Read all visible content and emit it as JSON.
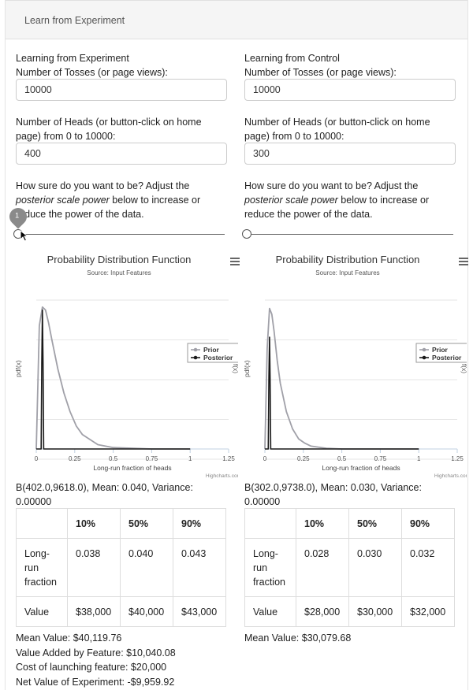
{
  "panel": {
    "title": "Learn from Experiment"
  },
  "experiment": {
    "heading": "Learning from Experiment",
    "tosses_label": "Number of Tosses (or page views):",
    "tosses_value": "10000",
    "heads_label_1": "Number of Heads (or button-click on home",
    "heads_label_2": "page) from 0 to 10000:",
    "heads_value": "400",
    "sure_1": "How sure do you want to be? Adjust the",
    "sure_2_em": "posterior scale power",
    "sure_2_rest": " below to increase or",
    "sure_3": "reduce the power of the data.",
    "slider_tooltip": "1",
    "slider_value": 0,
    "chart": {
      "title": "Probability Distribution Function",
      "subtitle": "Source: Input Features",
      "ylabel": "pdf(x)",
      "ylabel_right": "f(x)",
      "xlabel": "Long-run fraction of heads",
      "xticks": [
        "0",
        "0.25",
        "0.5",
        "0.75",
        "1",
        "1.25"
      ],
      "legend": [
        "Prior",
        "Posterior"
      ],
      "credit": "Highcharts.com"
    },
    "dist": "B(402.0,9618.0), Mean: 0.040, Variance:",
    "dist2": "0.00000",
    "table": {
      "headers": [
        "",
        "10%",
        "50%",
        "90%"
      ],
      "row1_label": [
        "Long-",
        "run",
        "fraction"
      ],
      "row1": [
        "0.038",
        "0.040",
        "0.043"
      ],
      "row2_label": "Value",
      "row2": [
        "$38,000",
        "$40,000",
        "$43,000"
      ]
    },
    "summary": [
      "Mean Value: $40,119.76",
      "Value Added by Feature: $10,040.08",
      "Cost of launching feature: $20,000",
      "Net Value of Experiment: -$9,959.92"
    ]
  },
  "control": {
    "heading": "Learning from Control",
    "tosses_label": "Number of Tosses (or page views):",
    "tosses_value": "10000",
    "heads_label_1": "Number of Heads (or button-click on home",
    "heads_label_2": "page) from 0 to 10000:",
    "heads_value": "300",
    "sure_1": "How sure do you want to be? Adjust the",
    "sure_2_em": "posterior scale power",
    "sure_2_rest": " below to increase or",
    "sure_3": "reduce the power of the data.",
    "slider_value": 0,
    "chart": {
      "title": "Probability Distribution Function",
      "subtitle": "Source: Input Features",
      "ylabel": "pdf(x)",
      "ylabel_right": "f(x)",
      "xlabel": "Long-run fraction of heads",
      "xticks": [
        "0",
        "0.25",
        "0.5",
        "0.75",
        "1",
        "1.25"
      ],
      "legend": [
        "Prior",
        "Posterior"
      ],
      "credit": "Highcharts.com"
    },
    "dist": "B(302.0,9738.0), Mean: 0.030, Variance:",
    "dist2": "0.00000",
    "table": {
      "headers": [
        "",
        "10%",
        "50%",
        "90%"
      ],
      "row1_label": [
        "Long-",
        "run",
        "fraction"
      ],
      "row1": [
        "0.028",
        "0.030",
        "0.032"
      ],
      "row2_label": "Value",
      "row2": [
        "$28,000",
        "$30,000",
        "$32,000"
      ]
    },
    "summary": [
      "Mean Value: $30,079.68"
    ]
  },
  "chart_data": [
    {
      "type": "line",
      "title": "Probability Distribution Function",
      "subtitle": "Source: Input Features",
      "xlabel": "Long-run fraction of heads",
      "ylabel": "pdf(x)",
      "xlim": [
        0,
        1.25
      ],
      "legend_position": "right",
      "series": [
        {
          "name": "Prior",
          "color": "#a0a0a8",
          "x": [
            0,
            0.02,
            0.04,
            0.06,
            0.08,
            0.1,
            0.14,
            0.18,
            0.22,
            0.26,
            0.3,
            0.4,
            0.5,
            0.75,
            1
          ],
          "y": [
            0,
            0.86,
            0.99,
            0.97,
            0.88,
            0.77,
            0.56,
            0.39,
            0.26,
            0.16,
            0.1,
            0.03,
            0.01,
            0,
            0
          ]
        },
        {
          "name": "Posterior",
          "color": "#1a1a1a",
          "x": [
            0,
            0.032,
            0.036,
            0.04,
            0.044,
            0.048,
            0.06,
            1
          ],
          "y": [
            0,
            0,
            0.6,
            0.97,
            0.6,
            0,
            0,
            0
          ]
        }
      ]
    },
    {
      "type": "line",
      "title": "Probability Distribution Function",
      "subtitle": "Source: Input Features",
      "xlabel": "Long-run fraction of heads",
      "ylabel": "pdf(x)",
      "xlim": [
        0,
        1.25
      ],
      "legend_position": "right",
      "series": [
        {
          "name": "Prior",
          "color": "#a0a0a8",
          "x": [
            0,
            0.015,
            0.03,
            0.045,
            0.06,
            0.08,
            0.1,
            0.14,
            0.18,
            0.22,
            0.26,
            0.3,
            0.4,
            0.5,
            0.75,
            1
          ],
          "y": [
            0,
            0.7,
            0.98,
            0.94,
            0.82,
            0.62,
            0.46,
            0.26,
            0.14,
            0.07,
            0.04,
            0.02,
            0.005,
            0,
            0,
            0
          ]
        },
        {
          "name": "Posterior",
          "color": "#1a1a1a",
          "x": [
            0,
            0.022,
            0.026,
            0.03,
            0.034,
            0.038,
            0.05,
            1
          ],
          "y": [
            0,
            0,
            0.5,
            0.78,
            0.5,
            0,
            0,
            0
          ]
        }
      ]
    }
  ]
}
